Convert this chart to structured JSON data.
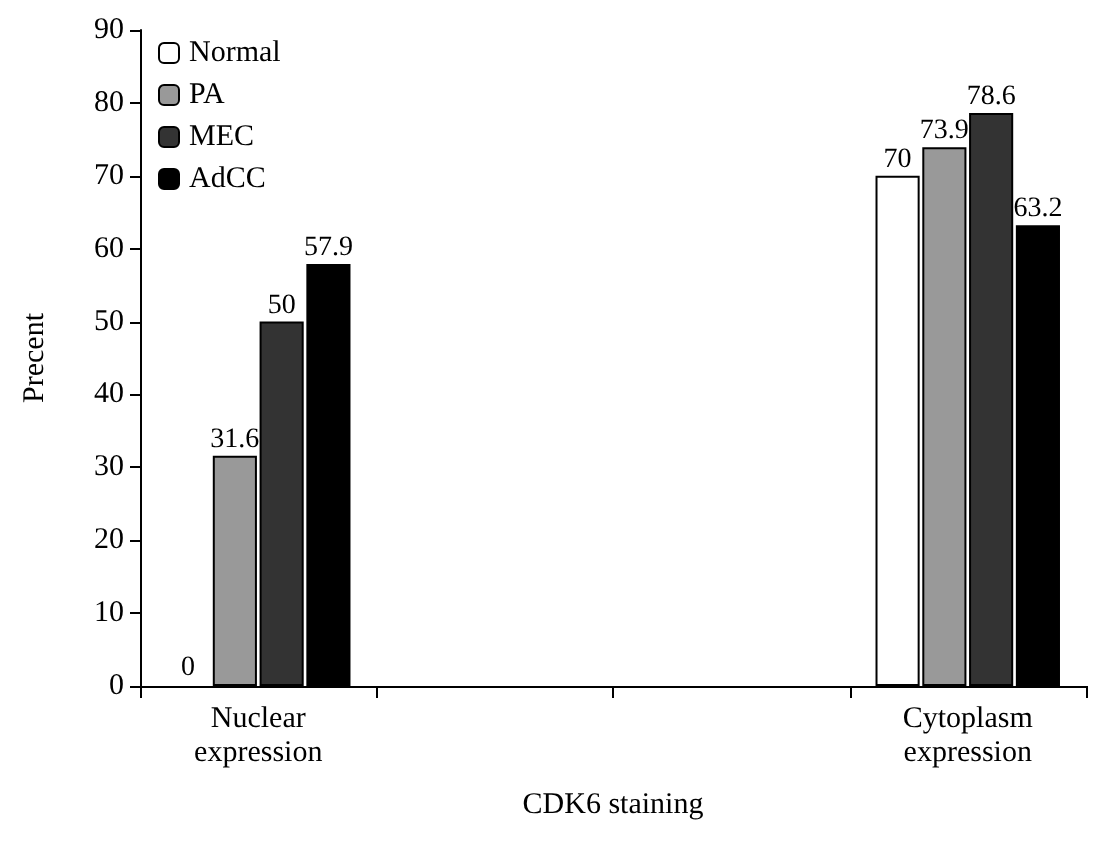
{
  "chart_data": {
    "type": "bar",
    "xlabel": "CDK6 staining",
    "ylabel": "Precent",
    "categories": [
      "Nuclear expression",
      null,
      null,
      "Cytoplasm expression"
    ],
    "series": [
      {
        "name": "Normal",
        "color": "#ffffff",
        "values": [
          0,
          null,
          null,
          70
        ]
      },
      {
        "name": "PA",
        "color": "#999999",
        "values": [
          31.6,
          null,
          null,
          73.9
        ]
      },
      {
        "name": "MEC",
        "color": "#333333",
        "values": [
          50,
          null,
          null,
          78.6
        ]
      },
      {
        "name": "AdCC",
        "color": "#000000",
        "values": [
          57.9,
          null,
          null,
          63.2
        ]
      }
    ],
    "ylim": [
      0,
      90
    ],
    "yticks": [
      0,
      10,
      20,
      30,
      40,
      50,
      60,
      70,
      80,
      90
    ],
    "data_labels": true,
    "grid": false,
    "legend": "top left"
  }
}
